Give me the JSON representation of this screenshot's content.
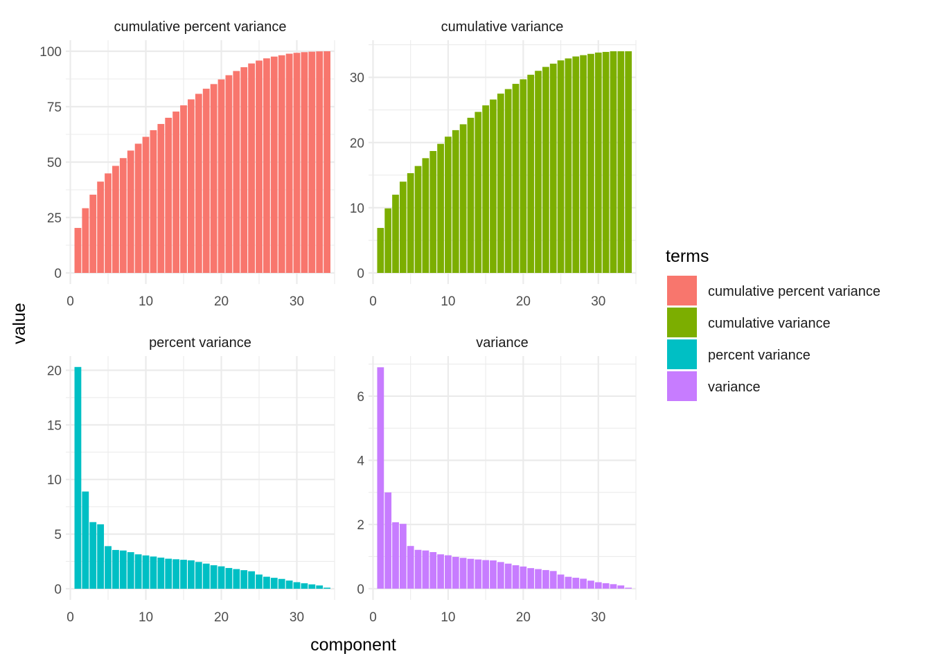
{
  "chart_data": {
    "type": "bar",
    "layout": "facet-grid-2x2",
    "x_label": "component",
    "y_label": "value",
    "legend": {
      "title": "terms",
      "position": "right",
      "entries": [
        {
          "label": "cumulative percent variance",
          "color": "#F8766D"
        },
        {
          "label": "cumulative variance",
          "color": "#7CAE00"
        },
        {
          "label": "percent variance",
          "color": "#00BFC4"
        },
        {
          "label": "variance",
          "color": "#C77CFF"
        }
      ]
    },
    "x_range": [
      -0.6,
      35.0
    ],
    "x_ticks": [
      0,
      10,
      20,
      30
    ],
    "x_ticks_text": [
      "0",
      "10",
      "20",
      "30"
    ],
    "panels": [
      {
        "title": "cumulative percent variance",
        "color": "#F8766D",
        "y_range": [
          -5.0,
          105.0
        ],
        "y_ticks": [
          0,
          25,
          50,
          75,
          100
        ],
        "y_ticks_text": [
          "0",
          "25",
          "50",
          "75",
          "100"
        ],
        "x": [
          1,
          2,
          3,
          4,
          5,
          6,
          7,
          8,
          9,
          10,
          11,
          12,
          13,
          14,
          15,
          16,
          17,
          18,
          19,
          20,
          21,
          22,
          23,
          24,
          25,
          26,
          27,
          28,
          29,
          30,
          31,
          32,
          33,
          34
        ],
        "values": [
          20.3,
          29.2,
          35.3,
          41.2,
          44.9,
          48.3,
          51.8,
          55.2,
          58.3,
          61.4,
          64.4,
          67.2,
          70.0,
          72.8,
          75.6,
          78.3,
          80.8,
          83.1,
          85.2,
          87.3,
          89.2,
          91.1,
          92.8,
          94.5,
          95.8,
          96.8,
          97.6,
          98.2,
          98.9,
          99.3,
          99.6,
          99.8,
          99.95,
          100.0
        ]
      },
      {
        "title": "cumulative variance",
        "color": "#7CAE00",
        "y_range": [
          -1.7,
          35.7
        ],
        "y_ticks": [
          0,
          10,
          20,
          30
        ],
        "y_ticks_text": [
          "0",
          "10",
          "20",
          "30"
        ],
        "x": [
          1,
          2,
          3,
          4,
          5,
          6,
          7,
          8,
          9,
          10,
          11,
          12,
          13,
          14,
          15,
          16,
          17,
          18,
          19,
          20,
          21,
          22,
          23,
          24,
          25,
          26,
          27,
          28,
          29,
          30,
          31,
          32,
          33,
          34
        ],
        "values": [
          6.9,
          9.9,
          12.0,
          14.0,
          15.3,
          16.4,
          17.6,
          18.7,
          19.8,
          20.9,
          21.9,
          22.8,
          23.8,
          24.7,
          25.7,
          26.6,
          27.5,
          28.2,
          29.0,
          29.7,
          30.4,
          31.0,
          31.6,
          32.1,
          32.6,
          32.9,
          33.2,
          33.4,
          33.6,
          33.8,
          33.9,
          34.0,
          34.0,
          34.0
        ]
      },
      {
        "title": "percent variance",
        "color": "#00BFC4",
        "y_range": [
          -1.02,
          21.3
        ],
        "y_ticks": [
          0,
          5,
          10,
          15,
          20
        ],
        "y_ticks_text": [
          "0",
          "5",
          "10",
          "15",
          "20"
        ],
        "x": [
          1,
          2,
          3,
          4,
          5,
          6,
          7,
          8,
          9,
          10,
          11,
          12,
          13,
          14,
          15,
          16,
          17,
          18,
          19,
          20,
          21,
          22,
          23,
          24,
          25,
          26,
          27,
          28,
          29,
          30,
          31,
          32,
          33,
          34
        ],
        "values": [
          20.3,
          8.9,
          6.1,
          5.9,
          3.9,
          3.55,
          3.5,
          3.35,
          3.15,
          3.05,
          2.95,
          2.85,
          2.75,
          2.7,
          2.65,
          2.6,
          2.45,
          2.3,
          2.15,
          2.05,
          1.9,
          1.8,
          1.7,
          1.6,
          1.3,
          1.1,
          1.0,
          0.9,
          0.75,
          0.6,
          0.5,
          0.4,
          0.3,
          0.1
        ]
      },
      {
        "title": "variance",
        "color": "#C77CFF",
        "y_range": [
          -0.35,
          7.25
        ],
        "y_ticks": [
          0,
          2,
          4,
          6
        ],
        "y_ticks_text": [
          "0",
          "2",
          "4",
          "6"
        ],
        "x": [
          1,
          2,
          3,
          4,
          5,
          6,
          7,
          8,
          9,
          10,
          11,
          12,
          13,
          14,
          15,
          16,
          17,
          18,
          19,
          20,
          21,
          22,
          23,
          24,
          25,
          26,
          27,
          28,
          29,
          30,
          31,
          32,
          33,
          34
        ],
        "values": [
          6.9,
          3.0,
          2.07,
          2.02,
          1.33,
          1.21,
          1.19,
          1.14,
          1.07,
          1.04,
          0.99,
          0.96,
          0.93,
          0.91,
          0.89,
          0.88,
          0.83,
          0.78,
          0.73,
          0.69,
          0.64,
          0.61,
          0.58,
          0.55,
          0.44,
          0.37,
          0.34,
          0.31,
          0.25,
          0.2,
          0.17,
          0.14,
          0.1,
          0.03
        ]
      }
    ]
  }
}
